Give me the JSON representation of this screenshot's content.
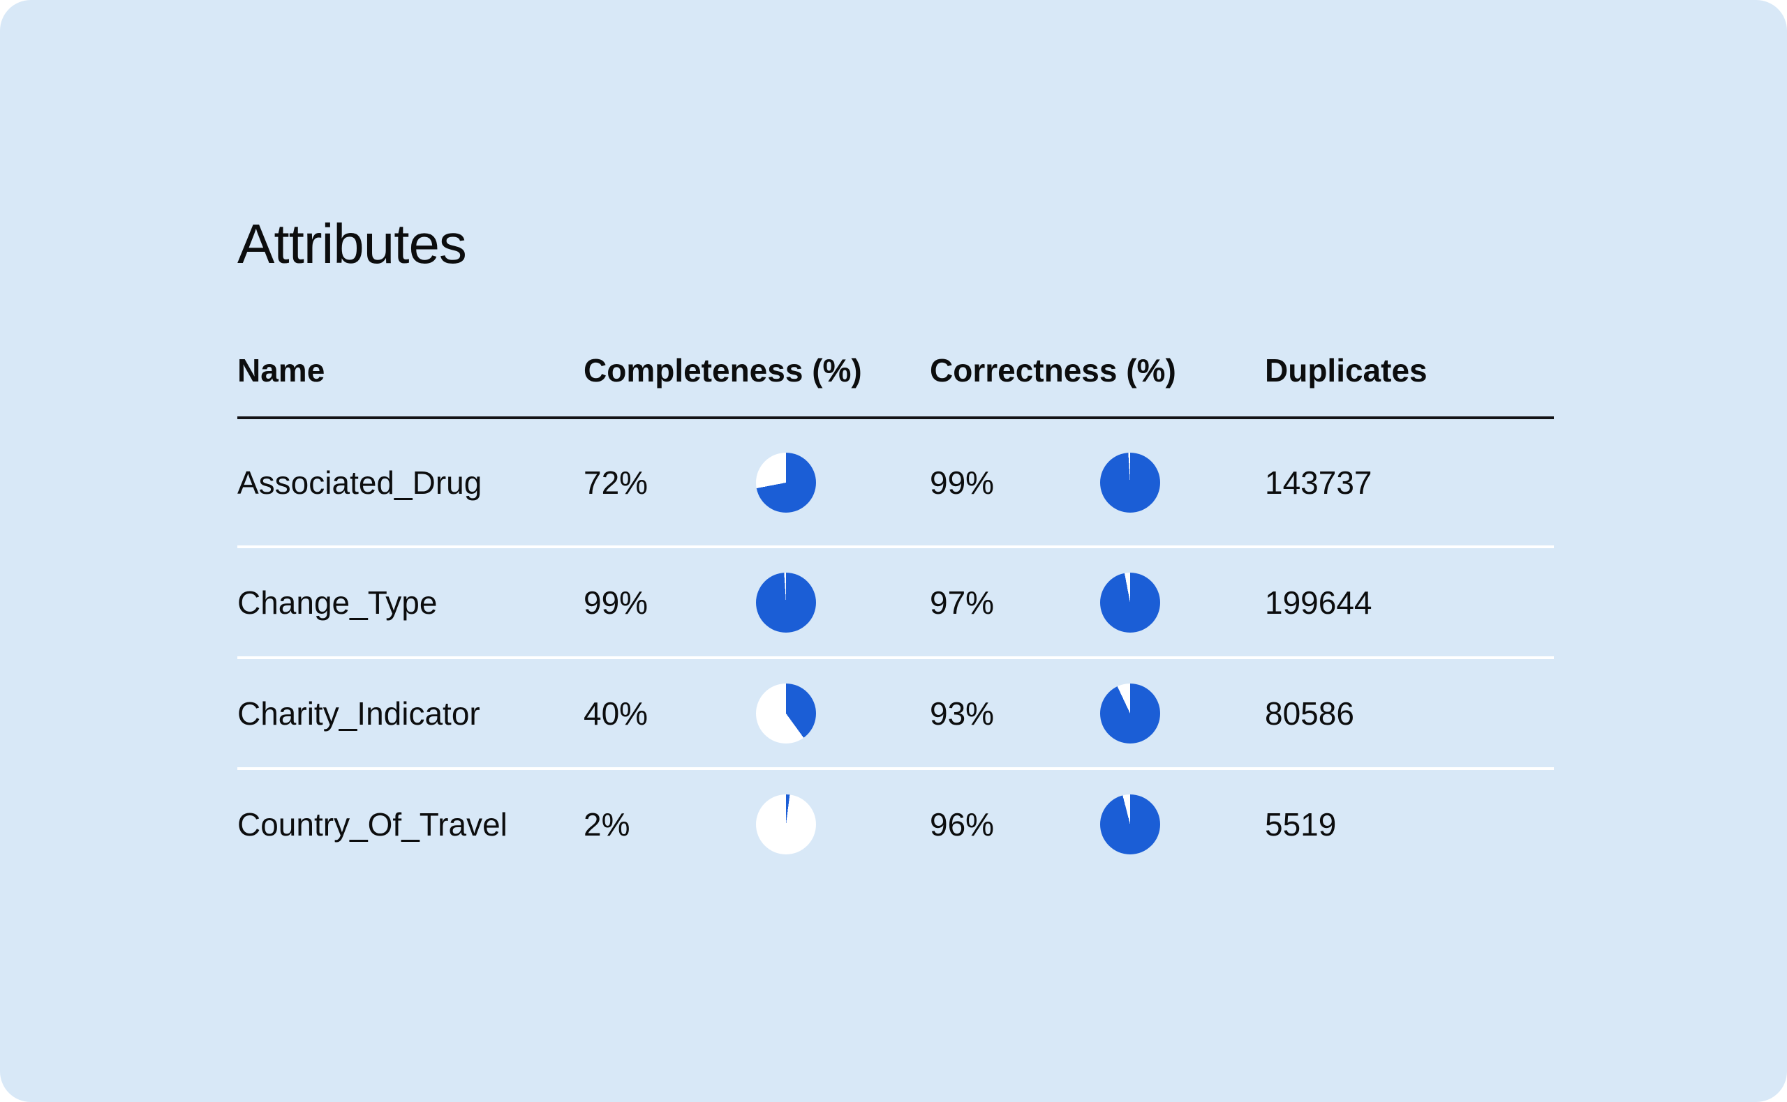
{
  "page": {
    "title": "Attributes"
  },
  "colors": {
    "page_bg": "#ffffff",
    "card_bg": "#d8e8f7",
    "text": "#0c0d0e",
    "header_rule": "#131316",
    "row_rule": "#ffffff",
    "pie_fill": "#1b5ed6",
    "pie_empty": "#ffffff"
  },
  "table": {
    "columns": [
      "Name",
      "Completeness (%)",
      "Correctness (%)",
      "Duplicates"
    ],
    "rows": [
      {
        "name": "Associated_Drug",
        "completeness": "72%",
        "completeness_pct": 72,
        "correctness": "99%",
        "correctness_pct": 99,
        "duplicates": "143737"
      },
      {
        "name": "Change_Type",
        "completeness": "99%",
        "completeness_pct": 99,
        "correctness": "97%",
        "correctness_pct": 97,
        "duplicates": "199644"
      },
      {
        "name": "Charity_Indicator",
        "completeness": "40%",
        "completeness_pct": 40,
        "correctness": "93%",
        "correctness_pct": 93,
        "duplicates": "80586"
      },
      {
        "name": "Country_Of_Travel",
        "completeness": "2%",
        "completeness_pct": 2,
        "correctness": "96%",
        "correctness_pct": 96,
        "duplicates": "5519"
      }
    ]
  },
  "chart_data": {
    "type": "table",
    "title": "Attributes",
    "columns": [
      "Name",
      "Completeness (%)",
      "Correctness (%)",
      "Duplicates"
    ],
    "pie_style": "percentage filled clockwise from 12 o'clock, blue on white",
    "rows": [
      {
        "name": "Associated_Drug",
        "completeness_pct": 72,
        "correctness_pct": 99,
        "duplicates": 143737
      },
      {
        "name": "Change_Type",
        "completeness_pct": 99,
        "correctness_pct": 97,
        "duplicates": 199644
      },
      {
        "name": "Charity_Indicator",
        "completeness_pct": 40,
        "correctness_pct": 93,
        "duplicates": 80586
      },
      {
        "name": "Country_Of_Travel",
        "completeness_pct": 2,
        "correctness_pct": 96,
        "duplicates": 5519
      }
    ]
  }
}
